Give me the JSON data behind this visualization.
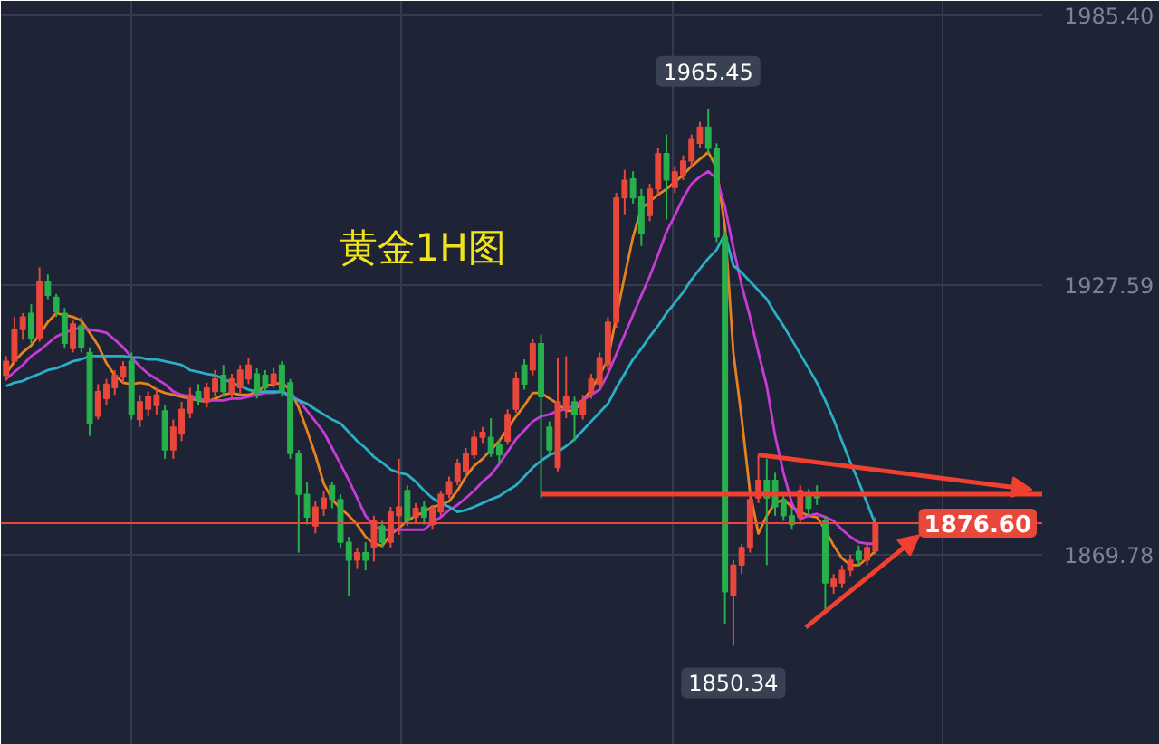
{
  "chart_data": {
    "type": "candlestick",
    "annotations": [
      "黄金1H图",
      {
        "text": "1965.45",
        "y": 1965.45
      },
      {
        "text": "1850.34",
        "y": 1850.34
      }
    ],
    "categories": [
      null,
      null,
      null,
      null,
      null,
      null,
      null,
      null,
      null,
      null,
      null,
      null,
      null,
      null,
      null,
      null,
      null,
      null,
      null,
      null,
      null,
      null,
      null,
      null,
      null,
      null,
      null,
      null,
      null,
      null,
      null,
      null,
      null,
      null,
      null,
      null,
      null,
      null,
      null,
      null,
      null,
      null,
      null,
      null,
      null,
      null,
      null,
      null,
      null,
      null,
      null,
      null,
      null,
      null,
      null,
      null,
      null,
      null,
      null,
      null,
      null,
      null,
      null,
      null,
      null,
      null,
      null,
      null,
      null,
      null,
      null,
      null,
      null,
      null,
      null,
      null,
      null,
      null,
      null,
      null,
      null,
      null,
      null,
      null,
      null,
      null,
      null,
      null,
      null,
      null,
      null,
      null,
      null,
      null,
      null,
      null,
      null,
      null,
      null,
      null,
      null,
      null,
      null,
      null,
      null
    ],
    "ohlc": [
      [
        1908.3,
        1912.4,
        1907.1,
        1911.3
      ],
      [
        1911.3,
        1920.8,
        1910.5,
        1918.1
      ],
      [
        1918.1,
        1921.6,
        1915.9,
        1920.8
      ],
      [
        1921.6,
        1923.5,
        1915.1,
        1916.2
      ],
      [
        1916.2,
        1931.4,
        1915.5,
        1928.4
      ],
      [
        1928.4,
        1929.9,
        1924.6,
        1925.4
      ],
      [
        1925.0,
        1925.7,
        1920.8,
        1921.9
      ],
      [
        1921.6,
        1922.7,
        1914.0,
        1915.1
      ],
      [
        1914.0,
        1920.0,
        1913.2,
        1919.3
      ],
      [
        1918.9,
        1920.8,
        1913.2,
        1914.3
      ],
      [
        1913.2,
        1914.3,
        1895.3,
        1898.0
      ],
      [
        1899.5,
        1906.4,
        1898.8,
        1904.8
      ],
      [
        1903.3,
        1907.5,
        1901.8,
        1906.4
      ],
      [
        1905.6,
        1909.4,
        1904.1,
        1908.3
      ],
      [
        1907.9,
        1911.3,
        1906.7,
        1910.2
      ],
      [
        1911.3,
        1913.2,
        1898.8,
        1899.9
      ],
      [
        1898.8,
        1904.1,
        1897.2,
        1902.6
      ],
      [
        1901.0,
        1904.8,
        1899.5,
        1903.7
      ],
      [
        1901.8,
        1905.6,
        1899.9,
        1904.1
      ],
      [
        1900.7,
        1901.8,
        1890.4,
        1892.3
      ],
      [
        1892.3,
        1898.8,
        1890.4,
        1897.2
      ],
      [
        1895.7,
        1902.6,
        1894.2,
        1901.0
      ],
      [
        1900.3,
        1905.6,
        1899.1,
        1904.1
      ],
      [
        1904.8,
        1906.4,
        1901.8,
        1902.9
      ],
      [
        1902.6,
        1906.7,
        1901.4,
        1905.6
      ],
      [
        1904.8,
        1909.4,
        1903.7,
        1907.5
      ],
      [
        1908.3,
        1910.5,
        1903.7,
        1904.8
      ],
      [
        1904.5,
        1908.6,
        1903.3,
        1907.5
      ],
      [
        1905.6,
        1910.5,
        1904.5,
        1909.4
      ],
      [
        1907.5,
        1912.1,
        1906.4,
        1910.5
      ],
      [
        1908.6,
        1909.8,
        1903.3,
        1904.5
      ],
      [
        1908.3,
        1909.4,
        1904.8,
        1905.6
      ],
      [
        1906.4,
        1909.8,
        1905.6,
        1908.6
      ],
      [
        1910.5,
        1911.3,
        1903.7,
        1904.8
      ],
      [
        1906.7,
        1907.5,
        1890.4,
        1891.5
      ],
      [
        1891.5,
        1892.3,
        1870.3,
        1882.8
      ],
      [
        1882.8,
        1885.5,
        1876.3,
        1877.9
      ],
      [
        1876.0,
        1881.3,
        1874.4,
        1880.1
      ],
      [
        1879.8,
        1883.6,
        1878.2,
        1882.0
      ],
      [
        1884.7,
        1885.5,
        1879.8,
        1881.7
      ],
      [
        1881.7,
        1882.8,
        1871.4,
        1872.5
      ],
      [
        1872.5,
        1873.7,
        1861.1,
        1868.7
      ],
      [
        1868.7,
        1871.4,
        1866.8,
        1870.3
      ],
      [
        1870.3,
        1872.5,
        1866.5,
        1868.7
      ],
      [
        1871.4,
        1878.2,
        1868.4,
        1877.1
      ],
      [
        1876.0,
        1877.1,
        1871.4,
        1872.5
      ],
      [
        1872.5,
        1880.1,
        1871.4,
        1879.0
      ],
      [
        1878.2,
        1890.4,
        1874.1,
        1880.1
      ],
      [
        1883.6,
        1884.7,
        1876.0,
        1877.1
      ],
      [
        1877.9,
        1880.9,
        1876.7,
        1879.8
      ],
      [
        1880.1,
        1881.3,
        1876.3,
        1877.9
      ],
      [
        1876.3,
        1880.5,
        1875.2,
        1879.8
      ],
      [
        1879.0,
        1883.6,
        1878.2,
        1882.8
      ],
      [
        1882.8,
        1886.6,
        1882.0,
        1885.5
      ],
      [
        1885.5,
        1890.4,
        1884.7,
        1889.3
      ],
      [
        1887.7,
        1892.7,
        1886.6,
        1891.5
      ],
      [
        1891.2,
        1896.5,
        1890.4,
        1895.0
      ],
      [
        1895.0,
        1897.2,
        1893.8,
        1896.1
      ],
      [
        1895.0,
        1899.1,
        1890.8,
        1891.5
      ],
      [
        1893.4,
        1894.6,
        1889.6,
        1891.2
      ],
      [
        1894.2,
        1901.0,
        1893.4,
        1899.9
      ],
      [
        1901.0,
        1909.0,
        1900.3,
        1907.5
      ],
      [
        1910.5,
        1911.7,
        1905.2,
        1906.4
      ],
      [
        1909.4,
        1916.2,
        1908.3,
        1915.1
      ],
      [
        1915.1,
        1917.0,
        1882.0,
        1903.7
      ],
      [
        1897.2,
        1898.4,
        1891.2,
        1892.3
      ],
      [
        1888.5,
        1912.1,
        1887.7,
        1902.6
      ],
      [
        1901.0,
        1912.4,
        1899.1,
        1903.7
      ],
      [
        1902.6,
        1903.7,
        1894.2,
        1899.9
      ],
      [
        1899.9,
        1904.1,
        1898.8,
        1902.9
      ],
      [
        1904.5,
        1908.6,
        1903.3,
        1907.5
      ],
      [
        1906.4,
        1913.2,
        1905.2,
        1912.1
      ],
      [
        1910.5,
        1920.8,
        1909.4,
        1919.7
      ],
      [
        1919.7,
        1947.4,
        1918.5,
        1946.3
      ],
      [
        1946.3,
        1952.3,
        1942.8,
        1950.1
      ],
      [
        1950.4,
        1952.0,
        1945.1,
        1946.3
      ],
      [
        1946.6,
        1948.2,
        1936.0,
        1938.7
      ],
      [
        1942.5,
        1949.3,
        1941.3,
        1948.2
      ],
      [
        1948.2,
        1956.9,
        1947.0,
        1955.8
      ],
      [
        1955.8,
        1959.9,
        1941.7,
        1950.1
      ],
      [
        1948.5,
        1953.1,
        1947.4,
        1951.9
      ],
      [
        1951.2,
        1955.4,
        1950.1,
        1954.2
      ],
      [
        1954.2,
        1959.9,
        1953.1,
        1958.8
      ],
      [
        1958.0,
        1962.6,
        1956.9,
        1961.5
      ],
      [
        1961.5,
        1965.45,
        1955.8,
        1956.9
      ],
      [
        1956.9,
        1958.0,
        1936.8,
        1937.9
      ],
      [
        1937.9,
        1939.0,
        1855.1,
        1861.9
      ],
      [
        1861.1,
        1868.7,
        1850.34,
        1867.6
      ],
      [
        1867.6,
        1872.2,
        1865.7,
        1871.4
      ],
      [
        1871.4,
        1882.8,
        1870.3,
        1881.7
      ],
      [
        1882.0,
        1891.2,
        1880.9,
        1885.8
      ],
      [
        1885.8,
        1890.4,
        1867.6,
        1882.0
      ],
      [
        1885.8,
        1887.4,
        1878.2,
        1880.1
      ],
      [
        1881.7,
        1882.8,
        1877.1,
        1878.2
      ],
      [
        1878.2,
        1879.8,
        1875.2,
        1876.3
      ],
      [
        1877.9,
        1884.7,
        1876.7,
        1883.6
      ],
      [
        1882.8,
        1883.9,
        1878.2,
        1879.8
      ],
      [
        1882.8,
        1884.7,
        1880.5,
        1882.0
      ],
      [
        1877.1,
        1878.2,
        1857.3,
        1863.8
      ],
      [
        1863.0,
        1865.7,
        1861.5,
        1864.6
      ],
      [
        1863.8,
        1867.6,
        1862.7,
        1866.5
      ],
      [
        1866.5,
        1869.9,
        1865.3,
        1868.7
      ],
      [
        1870.6,
        1871.8,
        1867.6,
        1868.7
      ],
      [
        1868.7,
        1872.5,
        1867.6,
        1871.4
      ],
      [
        1870.6,
        1877.9,
        1869.9,
        1876.6
      ]
    ],
    "colors": [
      "#e9473a",
      "#e9473a",
      "#e9473a",
      "#27b04b",
      "#e9473a",
      "#27b04b",
      "#27b04b",
      "#27b04b",
      "#e9473a",
      "#27b04b",
      "#27b04b",
      "#e9473a",
      "#e9473a",
      "#e9473a",
      "#e9473a",
      "#27b04b",
      "#e9473a",
      "#e9473a",
      "#e9473a",
      "#27b04b",
      "#e9473a",
      "#e9473a",
      "#e9473a",
      "#27b04b",
      "#e9473a",
      "#e9473a",
      "#27b04b",
      "#e9473a",
      "#e9473a",
      "#e9473a",
      "#27b04b",
      "#27b04b",
      "#e9473a",
      "#27b04b",
      "#27b04b",
      "#27b04b",
      "#27b04b",
      "#e9473a",
      "#e9473a",
      "#27b04b",
      "#27b04b",
      "#27b04b",
      "#e9473a",
      "#27b04b",
      "#e9473a",
      "#27b04b",
      "#e9473a",
      "#e9473a",
      "#27b04b",
      "#e9473a",
      "#27b04b",
      "#e9473a",
      "#e9473a",
      "#e9473a",
      "#e9473a",
      "#e9473a",
      "#e9473a",
      "#e9473a",
      "#27b04b",
      "#27b04b",
      "#e9473a",
      "#e9473a",
      "#27b04b",
      "#e9473a",
      "#27b04b",
      "#27b04b",
      "#e9473a",
      "#e9473a",
      "#27b04b",
      "#e9473a",
      "#e9473a",
      "#e9473a",
      "#e9473a",
      "#e9473a",
      "#e9473a",
      "#27b04b",
      "#27b04b",
      "#e9473a",
      "#e9473a",
      "#27b04b",
      "#e9473a",
      "#e9473a",
      "#e9473a",
      "#e9473a",
      "#27b04b",
      "#27b04b",
      "#27b04b",
      "#e9473a",
      "#e9473a",
      "#e9473a",
      "#e9473a",
      "#27b04b",
      "#27b04b",
      "#27b04b",
      "#27b04b",
      "#e9473a",
      "#27b04b",
      "#27b04b",
      "#27b04b",
      "#e9473a",
      "#e9473a",
      "#e9473a",
      "#27b04b",
      "#e9473a",
      "#e9473a"
    ],
    "series": [
      {
        "type": "line",
        "color": "#e8821e",
        "values": [
          1908.6,
          1911.3,
          1913.2,
          1914.7,
          1917.0,
          1919.7,
          1921.6,
          1921.2,
          1920.8,
          1920.0,
          1917.4,
          1914.7,
          1910.9,
          1908.3,
          1906.7,
          1906.4,
          1906.7,
          1906.4,
          1905.2,
          1904.5,
          1904.1,
          1903.7,
          1903.3,
          1902.9,
          1902.6,
          1903.3,
          1904.1,
          1904.5,
          1904.1,
          1904.1,
          1904.8,
          1906.0,
          1906.4,
          1906.7,
          1905.2,
          1901.4,
          1896.5,
          1891.2,
          1885.1,
          1881.7,
          1879.8,
          1878.2,
          1876.3,
          1873.7,
          1872.2,
          1871.8,
          1874.1,
          1875.6,
          1877.1,
          1878.2,
          1879.0,
          1880.1,
          1880.5,
          1881.3,
          1883.6,
          1886.6,
          1888.9,
          1890.4,
          1892.3,
          1894.2,
          1896.9,
          1899.5,
          1901.8,
          1904.5,
          1904.5,
          1903.3,
          1902.2,
          1900.7,
          1900.7,
          1902.9,
          1905.2,
          1908.3,
          1911.7,
          1920.8,
          1929.5,
          1937.9,
          1944.0,
          1945.5,
          1947.0,
          1948.2,
          1949.7,
          1951.2,
          1953.1,
          1954.6,
          1956.1,
          1952.7,
          1940.0,
          1913.2,
          1899.1,
          1883.2,
          1874.4,
          1878.2,
          1880.9,
          1881.7,
          1880.1,
          1879.0,
          1878.2,
          1877.9,
          1875.2,
          1871.8,
          1869.1,
          1867.6,
          1867.6,
          1869.1,
          1870.6
        ]
      },
      {
        "type": "line",
        "color": "#c93bd6",
        "values": [
          1907.5,
          1909.0,
          1910.5,
          1912.4,
          1913.6,
          1915.1,
          1916.6,
          1917.4,
          1918.1,
          1918.5,
          1918.1,
          1917.8,
          1917.4,
          1915.9,
          1914.3,
          1912.1,
          1910.2,
          1908.6,
          1907.5,
          1906.4,
          1904.8,
          1904.1,
          1903.7,
          1903.3,
          1902.9,
          1902.9,
          1902.9,
          1903.3,
          1903.3,
          1903.7,
          1904.1,
          1904.5,
          1904.5,
          1904.8,
          1904.1,
          1902.9,
          1900.7,
          1898.4,
          1896.1,
          1892.7,
          1889.3,
          1885.8,
          1882.0,
          1878.2,
          1876.0,
          1875.2,
          1875.2,
          1875.2,
          1875.2,
          1875.2,
          1875.2,
          1876.7,
          1877.9,
          1879.4,
          1880.5,
          1882.0,
          1883.6,
          1885.5,
          1887.0,
          1889.3,
          1891.9,
          1894.6,
          1896.5,
          1898.4,
          1899.5,
          1899.9,
          1900.7,
          1901.0,
          1901.8,
          1902.9,
          1904.1,
          1905.2,
          1908.6,
          1912.8,
          1917.0,
          1921.2,
          1925.4,
          1929.5,
          1934.1,
          1939.0,
          1942.5,
          1946.3,
          1949.3,
          1950.8,
          1952.0,
          1950.4,
          1944.4,
          1935.6,
          1927.6,
          1920.8,
          1913.2,
          1906.0,
          1895.3,
          1887.4,
          1880.9,
          1877.5,
          1878.2,
          1878.6,
          1877.9,
          1877.1,
          1875.2,
          1873.7,
          1872.5,
          1872.2,
          1872.2
        ]
      },
      {
        "type": "line",
        "color": "#2ab0c5",
        "values": [
          1906.0,
          1906.7,
          1907.1,
          1907.9,
          1908.6,
          1909.4,
          1909.8,
          1910.5,
          1911.3,
          1911.7,
          1912.4,
          1912.4,
          1912.4,
          1912.4,
          1912.4,
          1912.1,
          1912.1,
          1911.7,
          1911.7,
          1911.3,
          1910.9,
          1910.5,
          1909.4,
          1909.0,
          1908.6,
          1908.3,
          1907.5,
          1906.7,
          1906.0,
          1905.2,
          1904.8,
          1904.8,
          1904.8,
          1904.8,
          1903.7,
          1902.9,
          1902.2,
          1901.0,
          1899.9,
          1898.8,
          1898.0,
          1896.1,
          1894.2,
          1892.7,
          1890.8,
          1889.6,
          1888.1,
          1887.4,
          1887.0,
          1885.5,
          1883.6,
          1882.0,
          1880.9,
          1880.1,
          1879.0,
          1879.4,
          1880.1,
          1880.9,
          1881.7,
          1882.4,
          1883.6,
          1884.7,
          1886.6,
          1888.5,
          1890.0,
          1891.2,
          1891.9,
          1893.1,
          1894.6,
          1896.5,
          1898.4,
          1900.3,
          1902.2,
          1905.6,
          1908.6,
          1911.7,
          1914.0,
          1916.6,
          1918.9,
          1921.6,
          1923.8,
          1926.1,
          1928.8,
          1931.1,
          1933.3,
          1935.2,
          1938.6,
          1931.8,
          1930.3,
          1928.4,
          1926.5,
          1924.6,
          1921.6,
          1918.9,
          1915.9,
          1912.8,
          1909.8,
          1906.7,
          1902.9,
          1898.8,
          1894.2,
          1889.6,
          1885.5,
          1880.9,
          1876.3
        ]
      }
    ],
    "ylim": [
      1829.1,
      1988.5
    ],
    "yticks": [
      1869.78,
      1927.59,
      {
        "value": 1985.4,
        "label": "1985.40"
      }
    ],
    "ref_lines": [
      {
        "axis": "y",
        "value": 1876.6,
        "label": "1876.60",
        "color": "#e9473a"
      }
    ],
    "grid": true,
    "tick_labels": "y"
  }
}
